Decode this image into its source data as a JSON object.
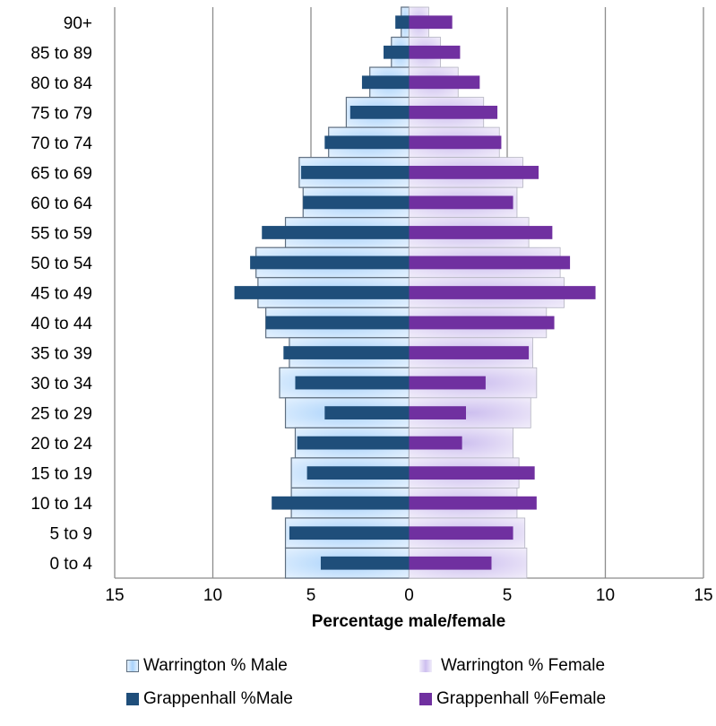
{
  "chart_data": {
    "type": "bar",
    "orientation": "horizontal",
    "layout": "population-pyramid",
    "categories": [
      "90+",
      "85 to 89",
      "80 to 84",
      "75 to 79",
      "70 to 74",
      "65 to 69",
      "60 to 64",
      "55 to 59",
      "50 to 54",
      "45 to 49",
      "40 to 44",
      "35 to 39",
      "30 to 34",
      "25 to 29",
      "20 to 24",
      "15 to 19",
      "10 to 14",
      "5 to 9",
      "0 to 4"
    ],
    "series": [
      {
        "name": "Warrington % Male",
        "side": "left",
        "color": "#a8cff5",
        "values": [
          0.4,
          0.9,
          2.0,
          3.2,
          4.1,
          5.6,
          5.4,
          6.3,
          7.8,
          7.7,
          7.3,
          6.1,
          6.6,
          6.3,
          5.8,
          6.0,
          6.0,
          6.3,
          6.3
        ]
      },
      {
        "name": "Warrington % Female",
        "side": "right",
        "color": "#d8cdef",
        "values": [
          1.0,
          1.6,
          2.5,
          3.8,
          4.6,
          5.8,
          5.5,
          6.1,
          7.7,
          7.9,
          7.0,
          6.3,
          6.5,
          6.2,
          5.3,
          5.6,
          5.5,
          5.9,
          6.0
        ]
      },
      {
        "name": "Grappenhall %Male",
        "side": "left",
        "color": "#1f4e7a",
        "values": [
          0.7,
          1.3,
          2.4,
          3.0,
          4.3,
          5.5,
          5.4,
          7.5,
          8.1,
          8.9,
          7.3,
          6.4,
          5.8,
          4.3,
          5.7,
          5.2,
          7.0,
          6.1,
          4.5
        ]
      },
      {
        "name": "Grappenhall %Female",
        "side": "right",
        "color": "#7030a0",
        "values": [
          2.2,
          2.6,
          3.6,
          4.5,
          4.7,
          6.6,
          5.3,
          7.3,
          8.2,
          9.5,
          7.4,
          6.1,
          3.9,
          2.9,
          2.7,
          6.4,
          6.5,
          5.3,
          4.2
        ]
      }
    ],
    "x_ticks": [
      "15",
      "10",
      "5",
      "0",
      "5",
      "10",
      "15"
    ],
    "xlim": [
      -15,
      15
    ],
    "xlabel": "Percentage male/female",
    "ylabel": "",
    "title": "",
    "grid": "vertical",
    "legend_position": "bottom"
  }
}
